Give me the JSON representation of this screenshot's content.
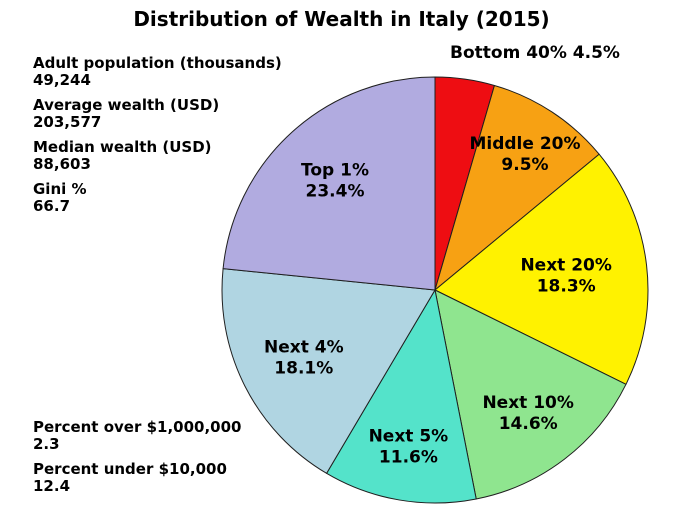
{
  "title": "Distribution of Wealth in Italy (2015)",
  "stats_top": [
    {
      "label": "Adult population (thousands)",
      "value": "49,244"
    },
    {
      "label": "Average wealth (USD)",
      "value": "203,577"
    },
    {
      "label": "Median wealth (USD)",
      "value": "88,603"
    },
    {
      "label": "Gini %",
      "value": "66.7"
    }
  ],
  "stats_bottom": [
    {
      "label": "Percent over $1,000,000",
      "value": "2.3"
    },
    {
      "label": "Percent under $10,000",
      "value": "12.4"
    }
  ],
  "chart_data": {
    "type": "pie",
    "title": "Distribution of Wealth in Italy (2015)",
    "units": "percent of total wealth",
    "direction": "clockwise",
    "start_angle_deg": 0,
    "center": [
      435,
      290
    ],
    "radius": 213,
    "stroke_color": "#1f1f1f",
    "label_color": "#000000",
    "background": "#ffffff",
    "legend": "none",
    "slices": [
      {
        "label": "Bottom 40%",
        "value": 4.5,
        "pct_text": "4.5%",
        "color": "#EE0D12",
        "label_outside": true,
        "label_pos": [
          450,
          58
        ]
      },
      {
        "label": "Middle 20%",
        "value": 9.5,
        "pct_text": "9.5%",
        "color": "#F7A113",
        "label_r": 0.77
      },
      {
        "label": "Next 20%",
        "value": 18.3,
        "pct_text": "18.3%",
        "color": "#FFF200",
        "label_r": 0.62
      },
      {
        "label": "Next 10%",
        "value": 14.6,
        "pct_text": "14.6%",
        "color": "#8FE58F",
        "label_r": 0.72
      },
      {
        "label": "Next 5%",
        "value": 11.6,
        "pct_text": "11.6%",
        "color": "#54E3CA",
        "label_r": 0.74
      },
      {
        "label": "Next 4%",
        "value": 18.1,
        "pct_text": "18.1%",
        "color": "#B0D5E2",
        "label_r": 0.69
      },
      {
        "label": "Top 1%",
        "value": 23.4,
        "pct_text": "23.4%",
        "color": "#B1ABE0",
        "label_r": 0.7
      }
    ]
  }
}
